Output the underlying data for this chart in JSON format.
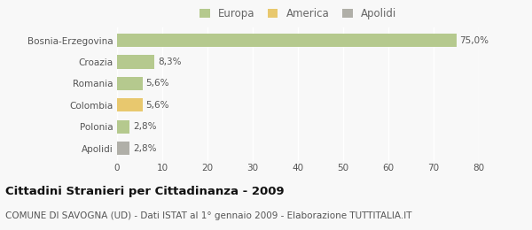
{
  "categories": [
    "Bosnia-Erzegovina",
    "Croazia",
    "Romania",
    "Colombia",
    "Polonia",
    "Apolidi"
  ],
  "values": [
    75.0,
    8.3,
    5.6,
    5.6,
    2.8,
    2.8
  ],
  "labels": [
    "75,0%",
    "8,3%",
    "5,6%",
    "5,6%",
    "2,8%",
    "2,8%"
  ],
  "bar_colors": [
    "#b5c98e",
    "#b5c98e",
    "#b5c98e",
    "#e8c86e",
    "#b5c98e",
    "#b0afa8"
  ],
  "legend_items": [
    {
      "label": "Europa",
      "color": "#b5c98e"
    },
    {
      "label": "America",
      "color": "#e8c86e"
    },
    {
      "label": "Apolidi",
      "color": "#b0afa8"
    }
  ],
  "xlim": [
    0,
    80
  ],
  "xticks": [
    0,
    10,
    20,
    30,
    40,
    50,
    60,
    70,
    80
  ],
  "title": "Cittadini Stranieri per Cittadinanza - 2009",
  "subtitle": "COMUNE DI SAVOGNA (UD) - Dati ISTAT al 1° gennaio 2009 - Elaborazione TUTTITALIA.IT",
  "background_color": "#f8f8f8",
  "grid_color": "#ffffff",
  "bar_height": 0.62,
  "title_fontsize": 9.5,
  "subtitle_fontsize": 7.5,
  "label_fontsize": 7.5,
  "tick_fontsize": 7.5,
  "legend_fontsize": 8.5
}
